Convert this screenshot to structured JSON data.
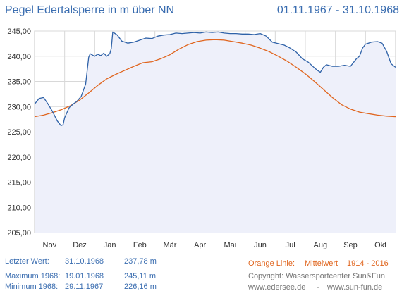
{
  "header": {
    "title": "Pegel Edertalsperre in m über NN",
    "period": "01.11.1967 - 31.10.1968"
  },
  "chart_data": {
    "type": "line",
    "title": "Pegel Edertalsperre in m über NN",
    "ylim": [
      205,
      245
    ],
    "yticks": [
      "205,00",
      "210,00",
      "215,00",
      "220,00",
      "225,00",
      "230,00",
      "235,00",
      "240,00",
      "245,00"
    ],
    "x_labels": [
      "Nov",
      "Dez",
      "Jan",
      "Feb",
      "Mär",
      "Apr",
      "Mai",
      "Jun",
      "Jul",
      "Aug",
      "Sep",
      "Okt"
    ],
    "x_range_months": [
      0,
      12
    ],
    "grid": true,
    "series": [
      {
        "name": "1968",
        "color": "#2f62a8",
        "x": [
          0.0,
          0.15,
          0.3,
          0.45,
          0.6,
          0.75,
          0.88,
          0.95,
          1.0,
          1.15,
          1.3,
          1.4,
          1.55,
          1.7,
          1.8,
          1.85,
          1.9,
          2.0,
          2.1,
          2.2,
          2.3,
          2.4,
          2.5,
          2.55,
          2.6,
          2.75,
          2.9,
          3.1,
          3.3,
          3.5,
          3.7,
          3.9,
          4.1,
          4.3,
          4.5,
          4.7,
          4.9,
          5.1,
          5.3,
          5.5,
          5.7,
          5.9,
          6.1,
          6.3,
          6.5,
          6.7,
          6.9,
          7.1,
          7.3,
          7.5,
          7.7,
          7.9,
          8.1,
          8.3,
          8.5,
          8.7,
          8.9,
          9.1,
          9.3,
          9.4,
          9.5,
          9.6,
          9.7,
          9.9,
          10.1,
          10.3,
          10.5,
          10.7,
          10.8,
          10.9,
          11.0,
          11.2,
          11.4,
          11.55,
          11.7,
          11.85,
          12.0
        ],
        "values": [
          230.5,
          231.6,
          231.8,
          230.5,
          229.0,
          227.2,
          226.2,
          226.4,
          227.8,
          229.8,
          230.6,
          231.0,
          232.0,
          234.5,
          239.8,
          240.5,
          240.3,
          240.0,
          240.4,
          240.1,
          240.6,
          240.0,
          240.5,
          241.5,
          244.8,
          244.2,
          243.0,
          242.6,
          242.8,
          243.2,
          243.6,
          243.5,
          244.0,
          244.2,
          244.3,
          244.6,
          244.5,
          244.6,
          244.7,
          244.6,
          244.8,
          244.7,
          244.8,
          244.6,
          244.5,
          244.5,
          244.4,
          244.4,
          244.3,
          244.5,
          244.0,
          242.8,
          242.5,
          242.2,
          241.6,
          240.8,
          239.5,
          238.8,
          237.7,
          237.2,
          236.8,
          237.8,
          238.3,
          238.0,
          238.0,
          238.2,
          238.0,
          239.5,
          240.0,
          241.6,
          242.4,
          242.8,
          242.9,
          242.6,
          241.0,
          238.5,
          237.8
        ]
      },
      {
        "name": "Mittelwert 1914 - 2016",
        "color": "#e0651e",
        "x": [
          0.0,
          0.3,
          0.6,
          0.9,
          1.2,
          1.5,
          1.8,
          2.1,
          2.4,
          2.7,
          3.0,
          3.3,
          3.6,
          3.9,
          4.2,
          4.5,
          4.8,
          5.1,
          5.4,
          5.7,
          6.0,
          6.3,
          6.6,
          6.9,
          7.2,
          7.5,
          7.8,
          8.1,
          8.4,
          8.7,
          9.0,
          9.3,
          9.6,
          9.9,
          10.2,
          10.5,
          10.8,
          11.1,
          11.4,
          11.7,
          12.0
        ],
        "values": [
          228.0,
          228.3,
          228.8,
          229.4,
          230.2,
          231.3,
          232.7,
          234.2,
          235.5,
          236.4,
          237.2,
          238.0,
          238.7,
          238.9,
          239.5,
          240.3,
          241.4,
          242.3,
          242.9,
          243.2,
          243.3,
          243.2,
          242.9,
          242.6,
          242.2,
          241.6,
          240.9,
          240.0,
          239.0,
          237.8,
          236.5,
          235.0,
          233.4,
          231.8,
          230.4,
          229.5,
          228.9,
          228.6,
          228.3,
          228.1,
          228.0
        ]
      }
    ]
  },
  "footer": {
    "last_label": "Letzter Wert:",
    "last_date": "31.10.1968",
    "last_value": "237,78 m",
    "max_label": "Maximum 1968:",
    "max_date": "19.01.1968",
    "max_value": "245,11 m",
    "min_label": "Minimum  1968:",
    "min_date": "29.11.1967",
    "min_value": "226,16 m",
    "orange_label": "Orange Linie:",
    "orange_mean": "Mittelwert",
    "orange_years": "1914 - 2016",
    "copyright": "Copyright: Wassersportcenter Sun&Fun",
    "site1": "www.edersee.de",
    "sep": "-",
    "site2": "www.sun-fun.de"
  }
}
